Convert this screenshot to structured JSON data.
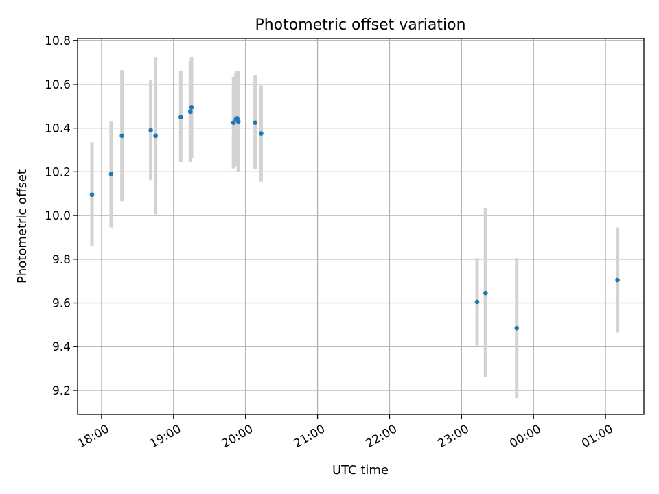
{
  "chart_data": {
    "type": "scatter",
    "title": "Photometric offset variation",
    "xlabel": "UTC time",
    "ylabel": "Photometric offset",
    "x_type": "time",
    "xlim": [
      "17:40",
      "01:32"
    ],
    "ylim": [
      9.09,
      10.81
    ],
    "grid": true,
    "legend": "none",
    "xticks": [
      "18:00",
      "19:00",
      "20:00",
      "21:00",
      "22:00",
      "23:00",
      "00:00",
      "01:00"
    ],
    "yticks": [
      "9.2",
      "9.4",
      "9.6",
      "9.8",
      "10.0",
      "10.2",
      "10.4",
      "10.6",
      "10.8"
    ],
    "colors": {
      "point": "#1f77b4",
      "errorbar": "#d3d3d3"
    },
    "series": [
      {
        "points": [
          {
            "x": "17:52",
            "y": 10.095,
            "ylow": 9.86,
            "yhigh": 10.335
          },
          {
            "x": "18:08",
            "y": 10.19,
            "ylow": 9.945,
            "yhigh": 10.43
          },
          {
            "x": "18:17",
            "y": 10.365,
            "ylow": 10.065,
            "yhigh": 10.665
          },
          {
            "x": "18:41",
            "y": 10.39,
            "ylow": 10.16,
            "yhigh": 10.62
          },
          {
            "x": "18:45",
            "y": 10.365,
            "ylow": 10.005,
            "yhigh": 10.725
          },
          {
            "x": "19:06",
            "y": 10.45,
            "ylow": 10.245,
            "yhigh": 10.66
          },
          {
            "x": "19:14",
            "y": 10.475,
            "ylow": 10.245,
            "yhigh": 10.705
          },
          {
            "x": "19:15",
            "y": 10.495,
            "ylow": 10.26,
            "yhigh": 10.725
          },
          {
            "x": "19:50",
            "y": 10.425,
            "ylow": 10.215,
            "yhigh": 10.635
          },
          {
            "x": "19:52",
            "y": 10.44,
            "ylow": 10.225,
            "yhigh": 10.65
          },
          {
            "x": "19:53",
            "y": 10.445,
            "ylow": 10.23,
            "yhigh": 10.66
          },
          {
            "x": "19:54",
            "y": 10.43,
            "ylow": 10.2,
            "yhigh": 10.66
          },
          {
            "x": "20:08",
            "y": 10.425,
            "ylow": 10.21,
            "yhigh": 10.64
          },
          {
            "x": "20:13",
            "y": 10.375,
            "ylow": 10.155,
            "yhigh": 10.595
          },
          {
            "x": "23:13",
            "y": 9.605,
            "ylow": 9.405,
            "yhigh": 9.805
          },
          {
            "x": "23:20",
            "y": 9.645,
            "ylow": 9.26,
            "yhigh": 10.035
          },
          {
            "x": "23:46",
            "y": 9.485,
            "ylow": 9.165,
            "yhigh": 9.805
          },
          {
            "x": "01:10",
            "y": 9.705,
            "ylow": 9.465,
            "yhigh": 9.945
          }
        ]
      }
    ]
  }
}
